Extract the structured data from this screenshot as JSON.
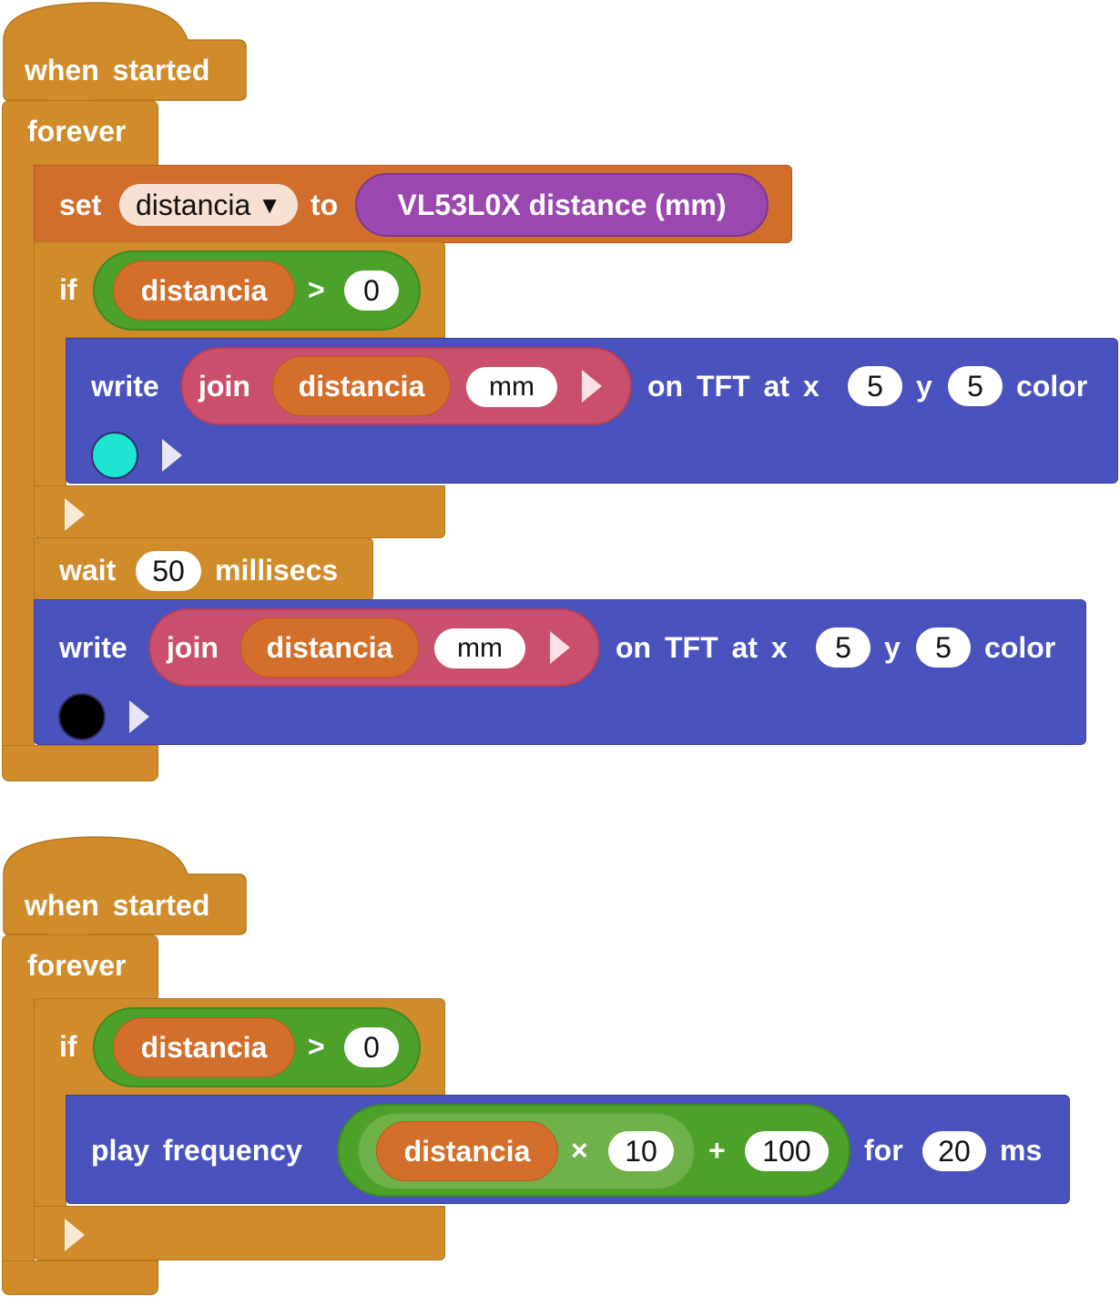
{
  "script1": {
    "hat": {
      "label": "when started"
    },
    "forever": {
      "label": "forever"
    },
    "set_block": {
      "set": "set",
      "variable": "distancia",
      "dropdown_arrow": "▼",
      "to": "to",
      "reporter": "VL53L0X distance (mm)"
    },
    "if_block": {
      "if": "if",
      "var": "distancia",
      "op": ">",
      "value": "0"
    },
    "write1": {
      "write": "write",
      "join": "join",
      "var": "distancia",
      "str": "mm",
      "on": "on TFT at x",
      "x": "5",
      "y_label": "y",
      "y": "5",
      "color_label": "color",
      "color": "#1de5d2"
    },
    "wait": {
      "wait": "wait",
      "value": "50",
      "unit": "millisecs"
    },
    "write2": {
      "write": "write",
      "join": "join",
      "var": "distancia",
      "str": "mm",
      "on": "on TFT at x",
      "x": "5",
      "y_label": "y",
      "y": "5",
      "color_label": "color",
      "color": "#000000"
    }
  },
  "script2": {
    "hat": {
      "label": "when started"
    },
    "forever": {
      "label": "forever"
    },
    "if_block": {
      "if": "if",
      "var": "distancia",
      "op": ">",
      "value": "0"
    },
    "play": {
      "label": "play frequency",
      "var": "distancia",
      "times": "×",
      "times_value": "10",
      "plus": "+",
      "plus_value": "100",
      "for": "for",
      "dur": "20",
      "unit": "ms"
    }
  },
  "colors": {
    "control": "#d08b2a",
    "variables": "#d16e2c",
    "operators": "#4ba12a",
    "io": "#4a52be",
    "join": "#c94f6c",
    "sensor": "#9a47b0"
  },
  "icons": [
    "expand-arrow-icon",
    "color-swatch-icon",
    "dropdown-arrow-icon"
  ]
}
